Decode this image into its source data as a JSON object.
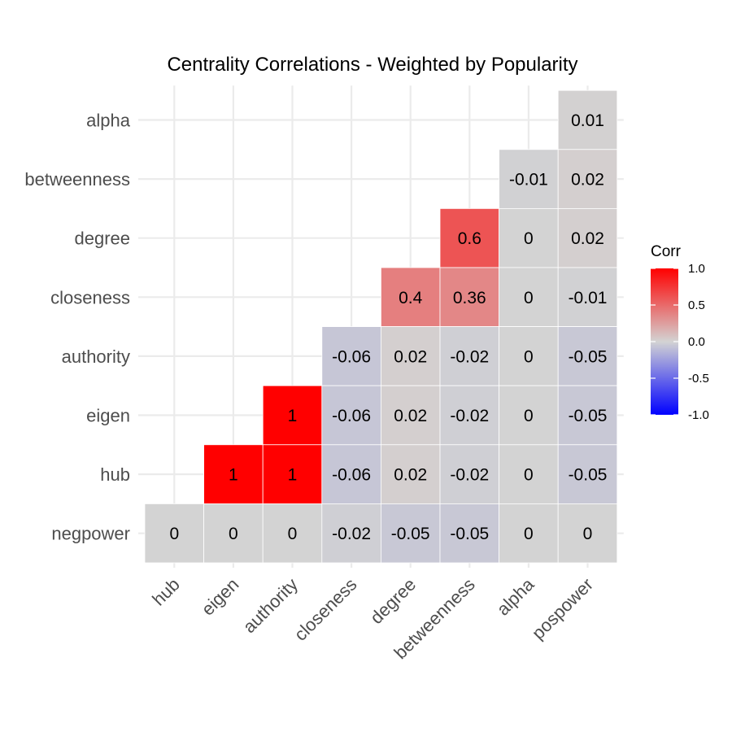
{
  "chart_data": {
    "type": "heatmap",
    "title": "Centrality Correlations - Weighted by Popularity",
    "x_categories": [
      "hub",
      "eigen",
      "authority",
      "closeness",
      "degree",
      "betweenness",
      "alpha",
      "pospower"
    ],
    "y_categories": [
      "negpower",
      "hub",
      "eigen",
      "authority",
      "closeness",
      "degree",
      "betweenness",
      "alpha"
    ],
    "cells": [
      {
        "x": "pospower",
        "y": "alpha",
        "value": 0.01
      },
      {
        "x": "alpha",
        "y": "betweenness",
        "value": -0.01
      },
      {
        "x": "pospower",
        "y": "betweenness",
        "value": 0.02
      },
      {
        "x": "betweenness",
        "y": "degree",
        "value": 0.6
      },
      {
        "x": "alpha",
        "y": "degree",
        "value": 0
      },
      {
        "x": "pospower",
        "y": "degree",
        "value": 0.02
      },
      {
        "x": "degree",
        "y": "closeness",
        "value": 0.4
      },
      {
        "x": "betweenness",
        "y": "closeness",
        "value": 0.36
      },
      {
        "x": "alpha",
        "y": "closeness",
        "value": 0
      },
      {
        "x": "pospower",
        "y": "closeness",
        "value": -0.01
      },
      {
        "x": "closeness",
        "y": "authority",
        "value": -0.06
      },
      {
        "x": "degree",
        "y": "authority",
        "value": 0.02
      },
      {
        "x": "betweenness",
        "y": "authority",
        "value": -0.02
      },
      {
        "x": "alpha",
        "y": "authority",
        "value": 0
      },
      {
        "x": "pospower",
        "y": "authority",
        "value": -0.05
      },
      {
        "x": "authority",
        "y": "eigen",
        "value": 1
      },
      {
        "x": "closeness",
        "y": "eigen",
        "value": -0.06
      },
      {
        "x": "degree",
        "y": "eigen",
        "value": 0.02
      },
      {
        "x": "betweenness",
        "y": "eigen",
        "value": -0.02
      },
      {
        "x": "alpha",
        "y": "eigen",
        "value": 0
      },
      {
        "x": "pospower",
        "y": "eigen",
        "value": -0.05
      },
      {
        "x": "eigen",
        "y": "hub",
        "value": 1
      },
      {
        "x": "authority",
        "y": "hub",
        "value": 1
      },
      {
        "x": "closeness",
        "y": "hub",
        "value": -0.06
      },
      {
        "x": "degree",
        "y": "hub",
        "value": 0.02
      },
      {
        "x": "betweenness",
        "y": "hub",
        "value": -0.02
      },
      {
        "x": "alpha",
        "y": "hub",
        "value": 0
      },
      {
        "x": "pospower",
        "y": "hub",
        "value": -0.05
      },
      {
        "x": "hub",
        "y": "negpower",
        "value": 0
      },
      {
        "x": "eigen",
        "y": "negpower",
        "value": 0
      },
      {
        "x": "authority",
        "y": "negpower",
        "value": 0
      },
      {
        "x": "closeness",
        "y": "negpower",
        "value": -0.02
      },
      {
        "x": "degree",
        "y": "negpower",
        "value": -0.05
      },
      {
        "x": "betweenness",
        "y": "negpower",
        "value": -0.05
      },
      {
        "x": "alpha",
        "y": "negpower",
        "value": 0
      },
      {
        "x": "pospower",
        "y": "negpower",
        "value": 0
      }
    ],
    "legend": {
      "title": "Corr",
      "position": "right",
      "ticks": [
        "1.0",
        "0.5",
        "0.0",
        "-0.5",
        "-1.0"
      ],
      "range": [
        -1,
        1
      ]
    },
    "colors": {
      "low": "#0000ff",
      "mid": "#d3d3d3",
      "high": "#ff0000"
    },
    "grid": true
  }
}
